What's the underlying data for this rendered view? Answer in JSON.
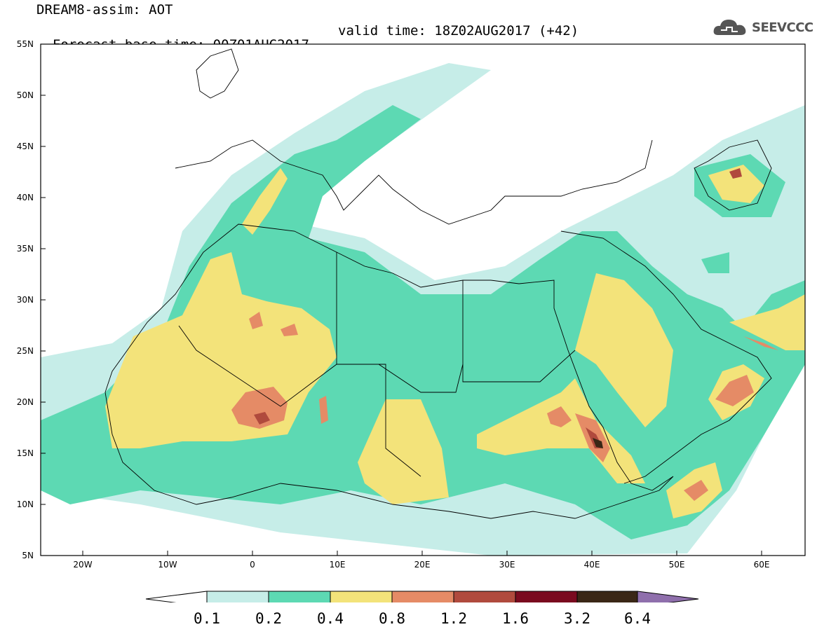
{
  "header": {
    "line1": "DREAM8-assim: AOT",
    "line2": "Forecast base time: 00Z01AUG2017",
    "valid": "valid time: 18Z02AUG2017 (+42)"
  },
  "logo": {
    "text": "SEEVCCC",
    "icon": "cloud-icon"
  },
  "map": {
    "projection": "lat-lon",
    "lon_range": [
      -25,
      65
    ],
    "lat_range": [
      5,
      55
    ],
    "lon_ticks": [
      "20W",
      "10W",
      "0",
      "10E",
      "20E",
      "30E",
      "40E",
      "50E",
      "60E"
    ],
    "lat_ticks": [
      "5N",
      "10N",
      "15N",
      "20N",
      "25N",
      "30N",
      "35N",
      "40N",
      "45N",
      "50N",
      "55N"
    ],
    "variable": "AOT"
  },
  "colorbar": {
    "labels": [
      "0.1",
      "0.2",
      "0.4",
      "0.8",
      "1.2",
      "1.6",
      "3.2",
      "6.4"
    ],
    "colors": [
      "#c6ede8",
      "#5dd9b3",
      "#f3e37a",
      "#e58b66",
      "#b04a3d",
      "#7a0a1f",
      "#3a2716",
      "#8f6fac"
    ]
  }
}
